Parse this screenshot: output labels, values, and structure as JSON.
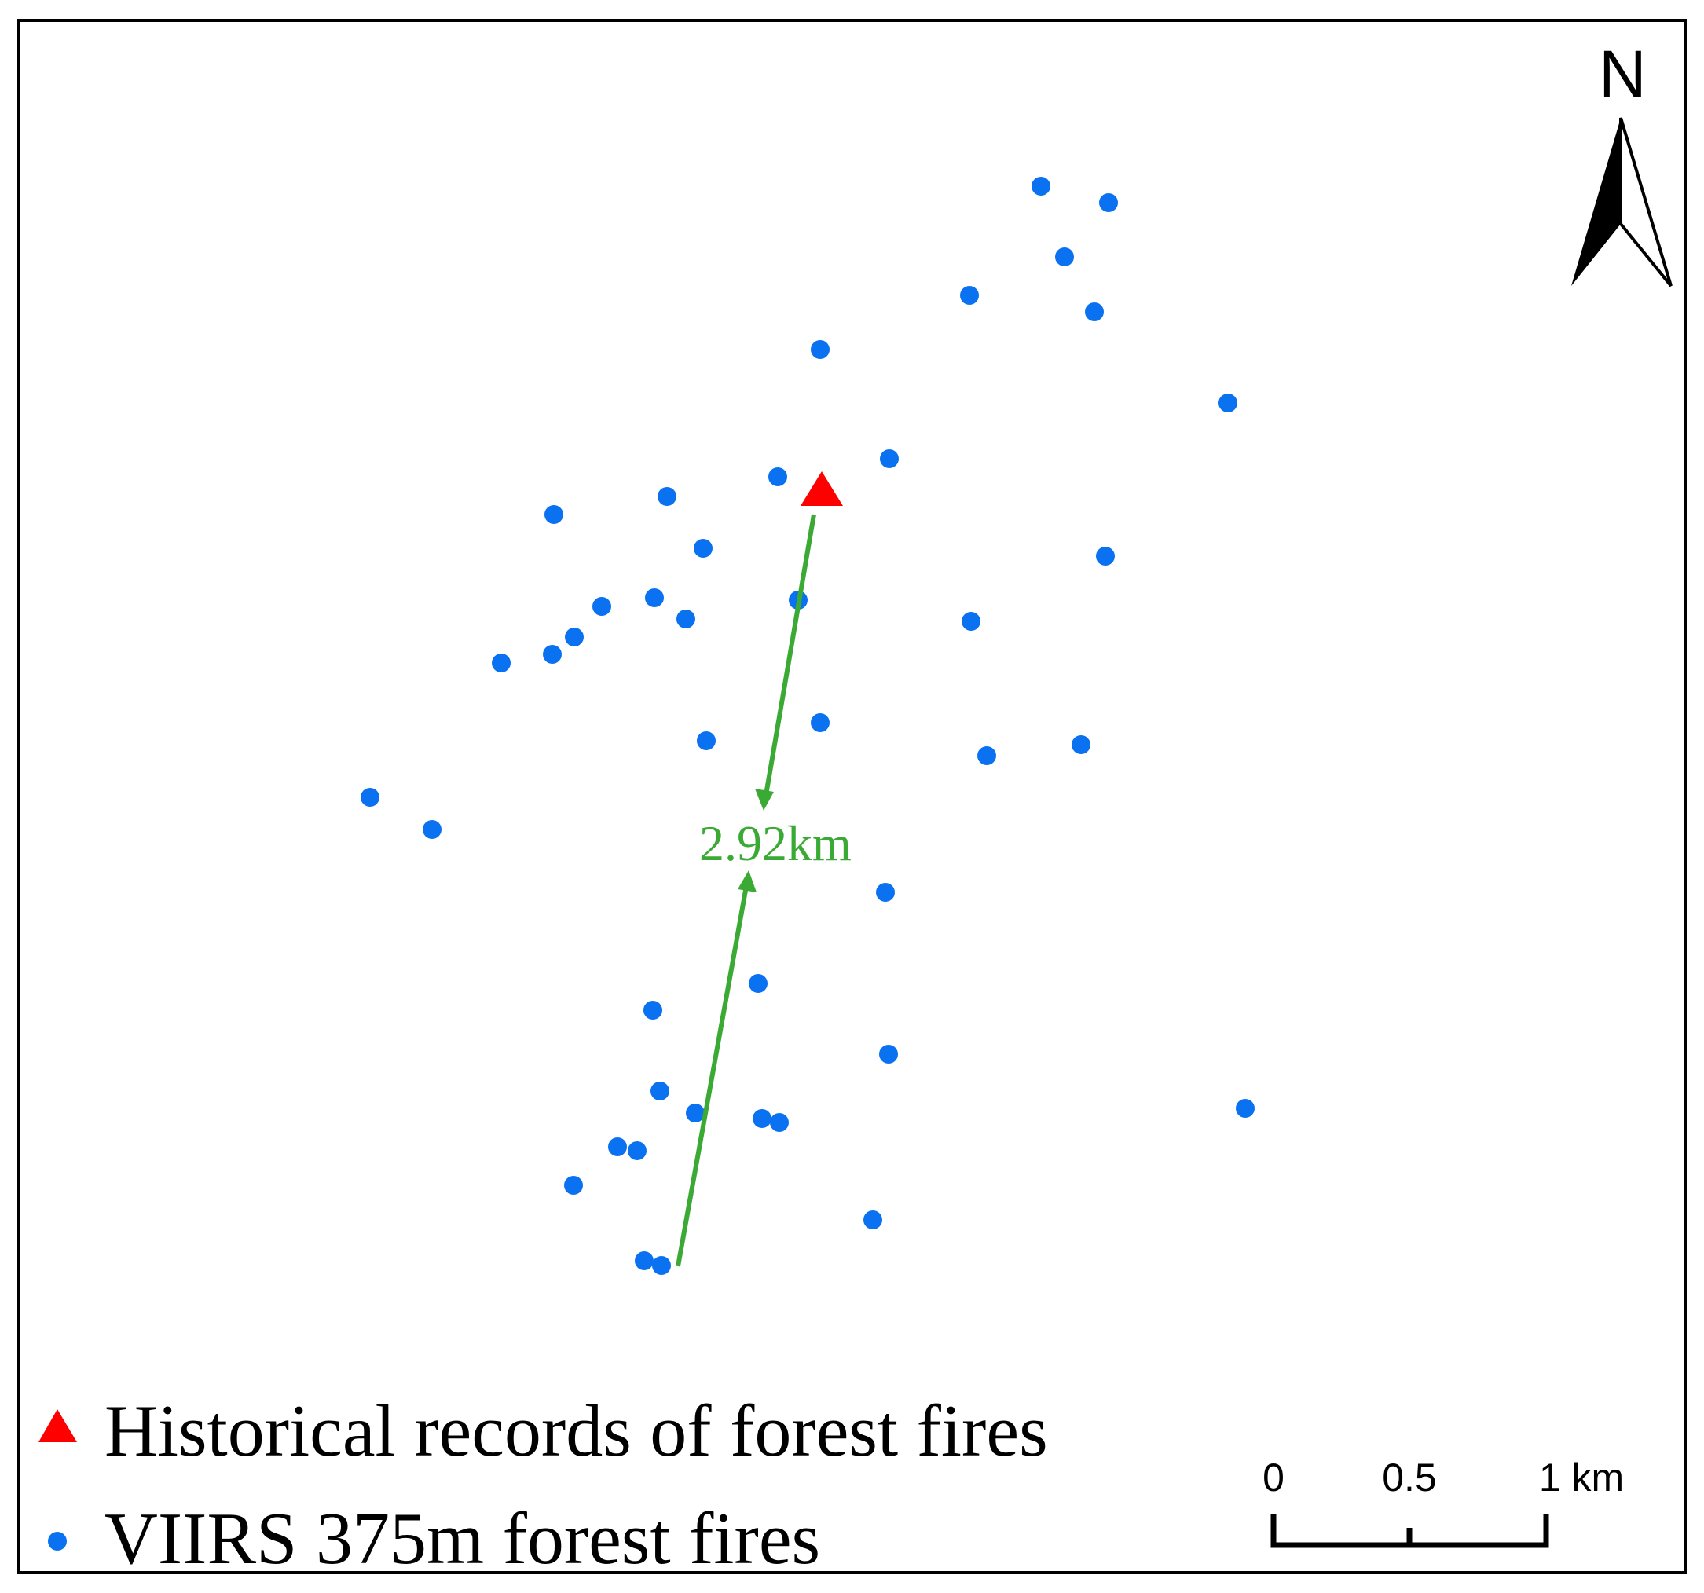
{
  "map": {
    "north_label": "N",
    "distance_label": "2.92km",
    "colors": {
      "viirs_fire": "#0a72f0",
      "historical_fire": "#ff0000",
      "distance_arrow": "#3aaa35"
    }
  },
  "legend": {
    "historical_label": "Historical records of forest fires",
    "viirs_label": "VIIRS 375m forest fires"
  },
  "scale_bar": {
    "ticks": [
      "0",
      "0.5",
      "1 km"
    ]
  }
}
